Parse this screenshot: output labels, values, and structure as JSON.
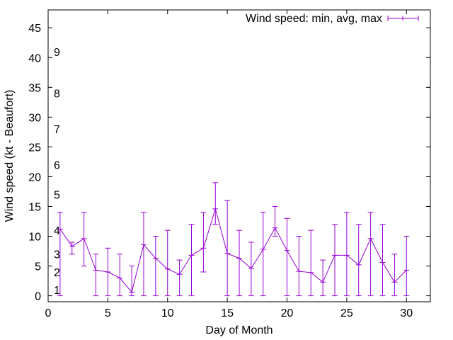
{
  "chart_data": {
    "type": "line",
    "xlabel": "Day of Month",
    "ylabel": "Wind speed (kt - Beaufort)",
    "xlim": [
      0,
      32
    ],
    "ylim": [
      -1,
      48
    ],
    "x_ticks": [
      0,
      5,
      10,
      15,
      20,
      25,
      30
    ],
    "y_ticks": [
      0,
      5,
      10,
      15,
      20,
      25,
      30,
      35,
      40,
      45
    ],
    "x_tick_labels": [
      "0",
      "5",
      "10",
      "15",
      "20",
      "25",
      "30"
    ],
    "y_tick_labels": [
      "0",
      "5",
      "10",
      "15",
      "20",
      "25",
      "30",
      "35",
      "40",
      "45"
    ],
    "grid": false,
    "legend_position": "top-right",
    "series": [
      {
        "name": "Wind speed: min, avg, max",
        "color": "#9400d3",
        "points": [
          {
            "x": 1,
            "min": 0,
            "avg": 11.2,
            "max": 14
          },
          {
            "x": 2,
            "min": 7,
            "avg": 8.3,
            "max": 9
          },
          {
            "x": 3,
            "min": 5,
            "avg": 9.6,
            "max": 14
          },
          {
            "x": 4,
            "min": 0,
            "avg": 4.3,
            "max": 7
          },
          {
            "x": 5,
            "min": 0,
            "avg": 4,
            "max": 8
          },
          {
            "x": 6,
            "min": 0,
            "avg": 3,
            "max": 7
          },
          {
            "x": 7,
            "min": 0,
            "avg": 0.6,
            "max": 5
          },
          {
            "x": 8,
            "min": 0,
            "avg": 8.6,
            "max": 14
          },
          {
            "x": 9,
            "min": 0,
            "avg": 6.3,
            "max": 10
          },
          {
            "x": 10,
            "min": 0,
            "avg": 4.5,
            "max": 11
          },
          {
            "x": 11,
            "min": 0,
            "avg": 3.6,
            "max": 6
          },
          {
            "x": 12,
            "min": 0,
            "avg": 6.8,
            "max": 12
          },
          {
            "x": 13,
            "min": 4,
            "avg": 8,
            "max": 14
          },
          {
            "x": 14,
            "min": 12,
            "avg": 14.6,
            "max": 19
          },
          {
            "x": 15,
            "min": 0,
            "avg": 7.1,
            "max": 16
          },
          {
            "x": 16,
            "min": 0,
            "avg": 6.3,
            "max": 11
          },
          {
            "x": 17,
            "min": 0,
            "avg": 4.6,
            "max": 9
          },
          {
            "x": 18,
            "min": 0,
            "avg": 7.8,
            "max": 14
          },
          {
            "x": 19,
            "min": 10,
            "avg": 11.4,
            "max": 15
          },
          {
            "x": 20,
            "min": 0,
            "avg": 7.6,
            "max": 13
          },
          {
            "x": 21,
            "min": 0,
            "avg": 4.1,
            "max": 10
          },
          {
            "x": 22,
            "min": 0,
            "avg": 3.9,
            "max": 11
          },
          {
            "x": 23,
            "min": 0,
            "avg": 2.3,
            "max": 6
          },
          {
            "x": 24,
            "min": 0,
            "avg": 6.8,
            "max": 12
          },
          {
            "x": 25,
            "min": 0,
            "avg": 6.8,
            "max": 14
          },
          {
            "x": 26,
            "min": 0,
            "avg": 5.2,
            "max": 12
          },
          {
            "x": 27,
            "min": 0,
            "avg": 9.6,
            "max": 14
          },
          {
            "x": 28,
            "min": 0,
            "avg": 5.6,
            "max": 12
          },
          {
            "x": 29,
            "min": 0,
            "avg": 2.3,
            "max": 7
          },
          {
            "x": 30,
            "min": 0,
            "avg": 4.3,
            "max": 10
          }
        ]
      }
    ],
    "beaufort_scale": [
      {
        "label": "1",
        "at": 1
      },
      {
        "label": "2",
        "at": 4
      },
      {
        "label": "3",
        "at": 7
      },
      {
        "label": "4",
        "at": 11
      },
      {
        "label": "5",
        "at": 17
      },
      {
        "label": "6",
        "at": 22
      },
      {
        "label": "7",
        "at": 28
      },
      {
        "label": "8",
        "at": 34
      },
      {
        "label": "9",
        "at": 41
      }
    ]
  }
}
